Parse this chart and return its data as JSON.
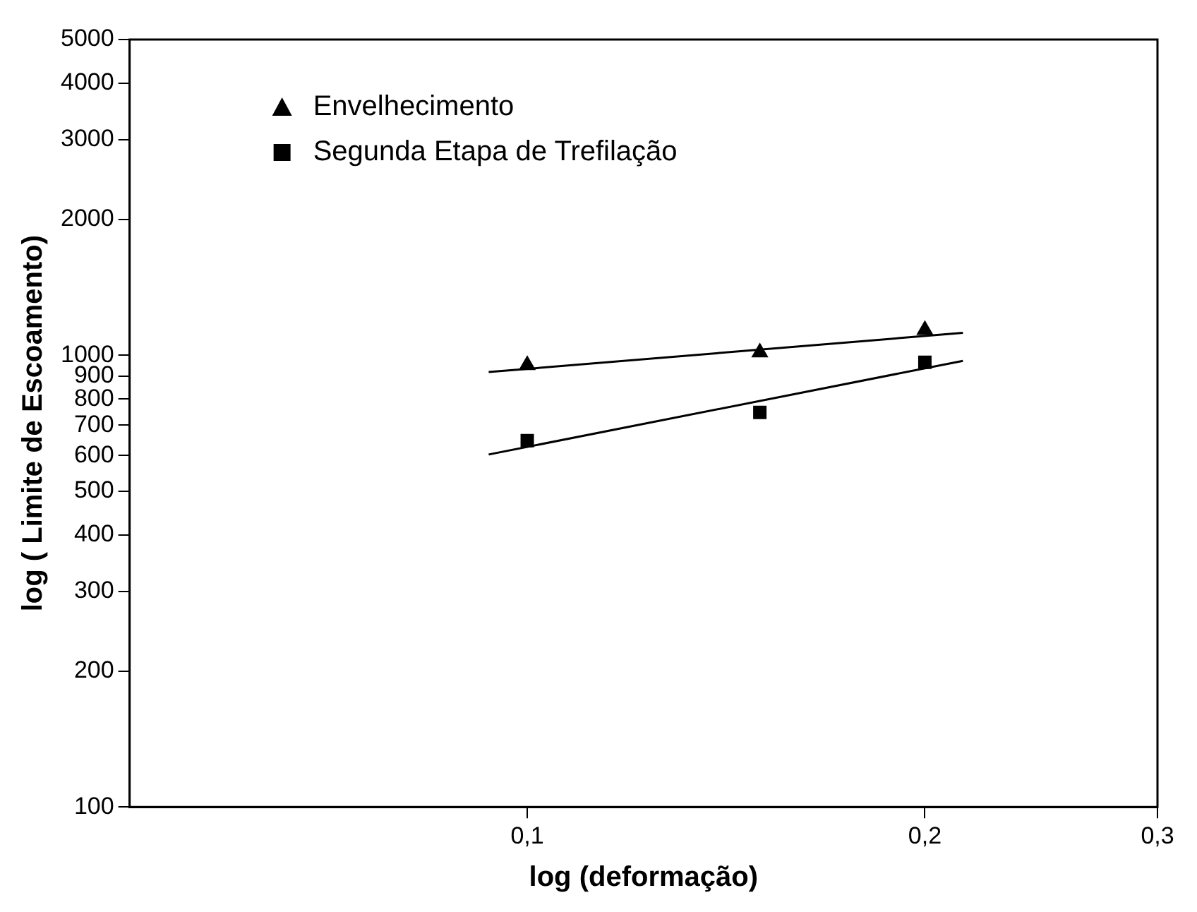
{
  "chart_data": {
    "type": "scatter",
    "xlabel": "log (deformação)",
    "ylabel": "log ( Limite de Escoamento)",
    "log": "xy",
    "xlim": [
      0.05,
      0.3
    ],
    "ylim": [
      100,
      5000
    ],
    "xticks": [
      {
        "value": 0.1,
        "label": "0,1"
      },
      {
        "value": 0.2,
        "label": "0,2"
      },
      {
        "value": 0.3,
        "label": "0,3"
      }
    ],
    "yticks": [
      100,
      200,
      300,
      400,
      500,
      600,
      700,
      800,
      900,
      1000,
      2000,
      3000,
      4000,
      5000
    ],
    "grid": false,
    "legend": "top left",
    "series": [
      {
        "name": "Envelhecimento",
        "color": "#000000",
        "marker": "triangle",
        "x": [
          0.1,
          0.15,
          0.2
        ],
        "values": [
          951,
          1015,
          1137
        ]
      },
      {
        "name": "Segunda Etapa de Trefilação",
        "color": "#000000",
        "marker": "square",
        "x": [
          0.1,
          0.15,
          0.2
        ],
        "values": [
          647,
          747,
          965
        ]
      },
      {
        "type": "line",
        "color": "#000000",
        "marker": "none",
        "line_style": "solid",
        "x": [
          0.0935,
          0.2137
        ],
        "values": [
          918,
          1121
        ]
      },
      {
        "type": "line",
        "color": "#000000",
        "marker": "none",
        "line_style": "solid",
        "x": [
          0.0935,
          0.2137
        ],
        "values": [
          603,
          972
        ]
      }
    ]
  }
}
